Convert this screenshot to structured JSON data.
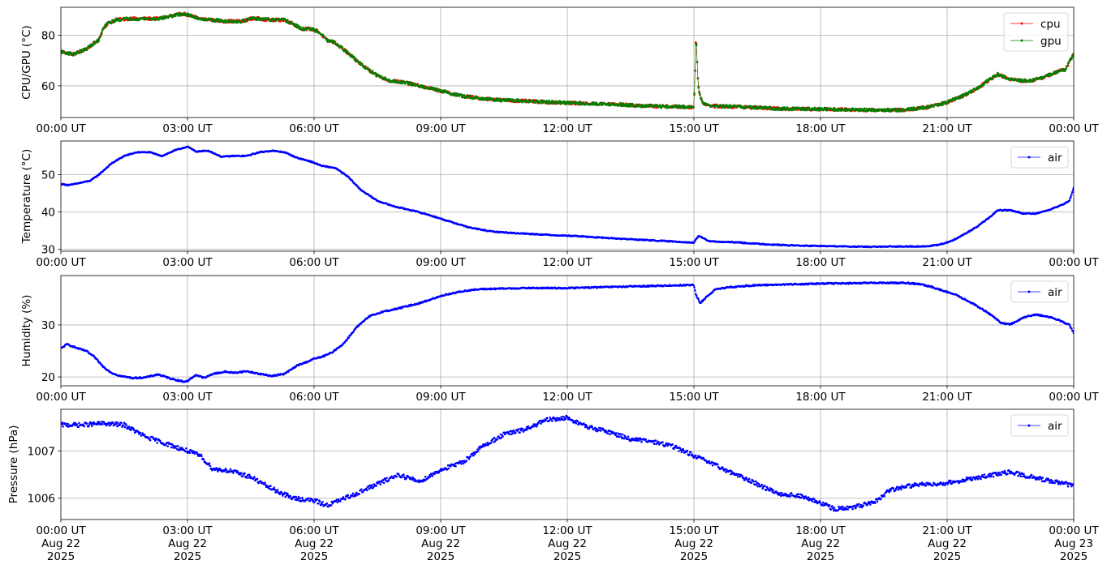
{
  "chart_data": [
    {
      "type": "line",
      "ylabel": "CPU/GPU (°C)",
      "xlabel": "",
      "xlim": [
        0,
        24
      ],
      "ylim": [
        47.5,
        91
      ],
      "yticks": [
        60,
        80
      ],
      "xtick_labels": [
        "00:00 UT",
        "03:00 UT",
        "06:00 UT",
        "09:00 UT",
        "12:00 UT",
        "15:00 UT",
        "18:00 UT",
        "21:00 UT",
        "00:00 UT"
      ],
      "grid": true,
      "legend": "top-right",
      "marker_size": 1.3,
      "series": [
        {
          "name": "cpu",
          "color": "#ff0000",
          "noise": 0.6,
          "x": [
            0,
            0.3,
            0.6,
            0.8,
            0.9,
            1.0,
            1.1,
            1.3,
            1.6,
            2.0,
            2.3,
            2.6,
            2.9,
            3.1,
            3.3,
            3.6,
            3.9,
            4.1,
            4.3,
            4.5,
            4.7,
            5.0,
            5.3,
            5.5,
            5.7,
            5.9,
            6.1,
            6.3,
            6.5,
            6.8,
            7.0,
            7.2,
            7.5,
            7.8,
            8.1,
            8.5,
            9.0,
            9.5,
            10.0,
            10.5,
            11.0,
            11.5,
            12.0,
            12.5,
            13.0,
            13.5,
            14.0,
            14.5,
            15.0,
            15.02,
            15.05,
            15.1,
            15.15,
            15.2,
            15.3,
            15.5,
            16.0,
            17.0,
            18.0,
            19.0,
            20.0,
            20.5,
            21.0,
            21.5,
            21.8,
            22.0,
            22.2,
            22.5,
            22.8,
            23.0,
            23.3,
            23.6,
            23.8,
            24.0
          ],
          "y": [
            73.5,
            72.5,
            74.5,
            77,
            78,
            82.5,
            84.5,
            86,
            86.5,
            86.5,
            86.5,
            87.5,
            88.5,
            87.5,
            86.5,
            86,
            85.5,
            85.5,
            85.5,
            86.5,
            86.5,
            86,
            86,
            84.5,
            82.5,
            82.5,
            81.5,
            78,
            77,
            73,
            70,
            67.5,
            64,
            62,
            61.5,
            60,
            58,
            56,
            55,
            54.3,
            54,
            53.6,
            53.3,
            53,
            52.8,
            52.4,
            52,
            51.8,
            51.6,
            62,
            81,
            60,
            56,
            53.5,
            52.5,
            52,
            51.8,
            51,
            50.8,
            50.5,
            50.5,
            51.5,
            53.5,
            57,
            60,
            62.5,
            64.5,
            62.5,
            62,
            62,
            63.5,
            65.5,
            66.5,
            72.5
          ]
        },
        {
          "name": "gpu",
          "color": "#008000",
          "noise": 0.6,
          "x": [
            0,
            0.3,
            0.6,
            0.8,
            0.9,
            1.0,
            1.1,
            1.3,
            1.6,
            2.0,
            2.3,
            2.6,
            2.9,
            3.1,
            3.3,
            3.6,
            3.9,
            4.1,
            4.3,
            4.5,
            4.7,
            5.0,
            5.3,
            5.5,
            5.7,
            5.9,
            6.1,
            6.3,
            6.5,
            6.8,
            7.0,
            7.2,
            7.5,
            7.8,
            8.1,
            8.5,
            9.0,
            9.5,
            10.0,
            10.5,
            11.0,
            11.5,
            12.0,
            12.5,
            13.0,
            13.5,
            14.0,
            14.5,
            15.0,
            15.02,
            15.05,
            15.1,
            15.15,
            15.2,
            15.3,
            15.5,
            16.0,
            17.0,
            18.0,
            19.0,
            20.0,
            20.5,
            21.0,
            21.5,
            21.8,
            22.0,
            22.2,
            22.5,
            22.8,
            23.0,
            23.3,
            23.6,
            23.8,
            24.0
          ],
          "y": [
            73.5,
            72.5,
            74.5,
            77,
            78,
            82.5,
            84.5,
            86,
            86.5,
            86.5,
            86.5,
            87.5,
            88.5,
            87.5,
            86.5,
            86,
            85.5,
            85.5,
            85.5,
            86.5,
            86.5,
            86,
            86,
            84.5,
            82.5,
            82.5,
            81.5,
            78,
            77,
            73,
            70,
            67.5,
            64,
            62,
            61.5,
            60,
            58,
            56,
            55,
            54.3,
            54,
            53.6,
            53.3,
            53,
            52.8,
            52.4,
            52,
            51.8,
            51.6,
            62,
            81,
            60,
            56,
            53.5,
            52.5,
            52,
            51.8,
            51,
            50.8,
            50.5,
            50.5,
            51.5,
            53.5,
            57,
            60,
            62.5,
            64.5,
            62.5,
            62,
            62,
            63.5,
            65.5,
            66.5,
            72.5
          ]
        }
      ]
    },
    {
      "type": "line",
      "ylabel": "Temperature (°C)",
      "xlabel": "",
      "xlim": [
        0,
        24
      ],
      "ylim": [
        29.5,
        59
      ],
      "yticks": [
        30,
        40,
        50
      ],
      "xtick_labels": [
        "00:00 UT",
        "03:00 UT",
        "06:00 UT",
        "09:00 UT",
        "12:00 UT",
        "15:00 UT",
        "18:00 UT",
        "21:00 UT",
        "00:00 UT"
      ],
      "grid": true,
      "legend": "top-right",
      "marker_size": 1.3,
      "series": [
        {
          "name": "air",
          "color": "#0000ff",
          "noise": 0.12,
          "x": [
            0,
            0.2,
            0.5,
            0.7,
            0.9,
            1.2,
            1.5,
            1.8,
            2.1,
            2.4,
            2.7,
            3.0,
            3.2,
            3.5,
            3.8,
            4.1,
            4.4,
            4.7,
            5.0,
            5.3,
            5.6,
            5.9,
            6.2,
            6.5,
            6.8,
            7.1,
            7.5,
            7.9,
            8.3,
            8.7,
            9.2,
            9.7,
            10.2,
            10.7,
            11.2,
            11.7,
            12.2,
            12.7,
            13.2,
            13.7,
            14.2,
            14.7,
            15.0,
            15.1,
            15.2,
            15.35,
            15.6,
            16.0,
            16.5,
            17.0,
            17.5,
            18.0,
            18.5,
            19.0,
            19.5,
            20.0,
            20.5,
            20.8,
            21.1,
            21.4,
            21.7,
            22.0,
            22.2,
            22.5,
            22.8,
            23.1,
            23.4,
            23.7,
            23.9,
            24.0
          ],
          "y": [
            47.5,
            47.2,
            47.9,
            48.4,
            50,
            53,
            55,
            56,
            56,
            55,
            56.5,
            57.5,
            56.2,
            56.4,
            54.8,
            55,
            55,
            56,
            56.4,
            56,
            54.5,
            53.6,
            52.3,
            51.8,
            49.5,
            46,
            43,
            41.5,
            40.5,
            39.3,
            37.5,
            35.8,
            34.8,
            34.4,
            34.1,
            33.8,
            33.6,
            33.2,
            32.9,
            32.6,
            32.3,
            32,
            31.8,
            33.5,
            33.2,
            32.2,
            32,
            31.9,
            31.5,
            31.2,
            31,
            30.9,
            30.8,
            30.7,
            30.7,
            30.8,
            30.8,
            31.2,
            32.2,
            34,
            36,
            38.5,
            40.5,
            40.5,
            39.6,
            39.6,
            40.5,
            41.8,
            43,
            46.5
          ]
        }
      ]
    },
    {
      "type": "line",
      "ylabel": "Humidity (%)",
      "xlabel": "",
      "xlim": [
        0,
        24
      ],
      "ylim": [
        18.3,
        39.5
      ],
      "yticks": [
        20,
        30
      ],
      "xtick_labels": [
        "00:00 UT",
        "03:00 UT",
        "06:00 UT",
        "09:00 UT",
        "12:00 UT",
        "15:00 UT",
        "18:00 UT",
        "21:00 UT",
        "00:00 UT"
      ],
      "grid": true,
      "legend": "top-right",
      "marker_size": 1.3,
      "series": [
        {
          "name": "air",
          "color": "#0000ff",
          "noise": 0.12,
          "x": [
            0,
            0.15,
            0.4,
            0.6,
            0.8,
            1.0,
            1.2,
            1.4,
            1.7,
            2.0,
            2.3,
            2.6,
            2.9,
            3.0,
            3.2,
            3.4,
            3.6,
            3.9,
            4.1,
            4.4,
            4.7,
            5.0,
            5.3,
            5.6,
            5.8,
            6.0,
            6.2,
            6.4,
            6.7,
            7.0,
            7.3,
            7.6,
            7.9,
            8.2,
            8.5,
            8.8,
            9.1,
            9.4,
            9.7,
            10.0,
            10.5,
            11.0,
            11.5,
            12.0,
            12.5,
            13.0,
            13.5,
            14.0,
            14.5,
            15.0,
            15.05,
            15.15,
            15.3,
            15.5,
            15.8,
            16.2,
            16.7,
            17.2,
            17.7,
            18.2,
            18.7,
            19.2,
            19.7,
            20.0,
            20.3,
            20.6,
            20.9,
            21.2,
            21.5,
            21.8,
            22.1,
            22.3,
            22.5,
            22.8,
            23.1,
            23.4,
            23.7,
            23.9,
            24.0
          ],
          "y": [
            25.5,
            26.3,
            25.5,
            25,
            23.8,
            22,
            20.8,
            20.2,
            19.8,
            19.9,
            20.5,
            19.7,
            19.1,
            19.2,
            20.4,
            19.8,
            20.6,
            21,
            20.8,
            21.1,
            20.6,
            20.2,
            20.6,
            22.2,
            22.8,
            23.5,
            23.9,
            24.6,
            26.4,
            29.5,
            31.6,
            32.5,
            33,
            33.6,
            34.2,
            35,
            35.8,
            36.3,
            36.7,
            36.9,
            37,
            37.1,
            37.1,
            37.1,
            37.2,
            37.3,
            37.4,
            37.5,
            37.6,
            37.7,
            35.7,
            34.2,
            35.4,
            36.8,
            37.2,
            37.5,
            37.7,
            37.8,
            37.9,
            38,
            38,
            38.1,
            38.1,
            38.1,
            37.9,
            37.4,
            36.6,
            35.8,
            34.6,
            33.2,
            31.6,
            30.3,
            30.1,
            31.4,
            32,
            31.6,
            30.8,
            30,
            28.5
          ]
        }
      ]
    },
    {
      "type": "scatter",
      "ylabel": "Pressure (hPa)",
      "xlabel": "",
      "xlim": [
        0,
        24
      ],
      "ylim": [
        1005.55,
        1007.88
      ],
      "yticks": [
        1006,
        1007
      ],
      "xtick_labels": [
        "00:00 UT\nAug 22\n2025",
        "03:00 UT\nAug 22\n2025",
        "06:00 UT\nAug 22\n2025",
        "09:00 UT\nAug 22\n2025",
        "12:00 UT\nAug 22\n2025",
        "15:00 UT\nAug 22\n2025",
        "18:00 UT\nAug 22\n2025",
        "21:00 UT\nAug 22\n2025",
        "00:00 UT\nAug 23\n2025"
      ],
      "grid": true,
      "legend": "top-right",
      "marker_size": 1.3,
      "series": [
        {
          "name": "air",
          "color": "#0000ff",
          "noise": 0.045,
          "x": [
            0,
            0.5,
            1.0,
            1.5,
            2.0,
            2.5,
            3.0,
            3.3,
            3.6,
            4.0,
            4.5,
            5.0,
            5.5,
            6.0,
            6.3,
            6.6,
            7.0,
            7.5,
            8.0,
            8.5,
            9.0,
            9.5,
            10.0,
            10.5,
            11.0,
            11.5,
            12.0,
            12.5,
            13.0,
            13.5,
            14.0,
            14.5,
            15.0,
            15.5,
            16.0,
            16.5,
            17.0,
            17.5,
            18.0,
            18.3,
            18.6,
            19.0,
            19.3,
            19.6,
            20.0,
            20.5,
            21.0,
            21.5,
            22.0,
            22.5,
            23.0,
            23.5,
            24.0
          ],
          "y": [
            1007.55,
            1007.55,
            1007.58,
            1007.55,
            1007.3,
            1007.15,
            1007.0,
            1006.9,
            1006.62,
            1006.58,
            1006.45,
            1006.2,
            1006.0,
            1005.95,
            1005.85,
            1005.95,
            1006.1,
            1006.3,
            1006.5,
            1006.35,
            1006.6,
            1006.75,
            1007.1,
            1007.35,
            1007.45,
            1007.65,
            1007.7,
            1007.5,
            1007.4,
            1007.25,
            1007.2,
            1007.1,
            1006.9,
            1006.7,
            1006.5,
            1006.3,
            1006.1,
            1006.05,
            1005.9,
            1005.78,
            1005.78,
            1005.85,
            1005.92,
            1006.15,
            1006.25,
            1006.3,
            1006.32,
            1006.4,
            1006.48,
            1006.55,
            1006.45,
            1006.35,
            1006.27
          ]
        }
      ]
    }
  ]
}
